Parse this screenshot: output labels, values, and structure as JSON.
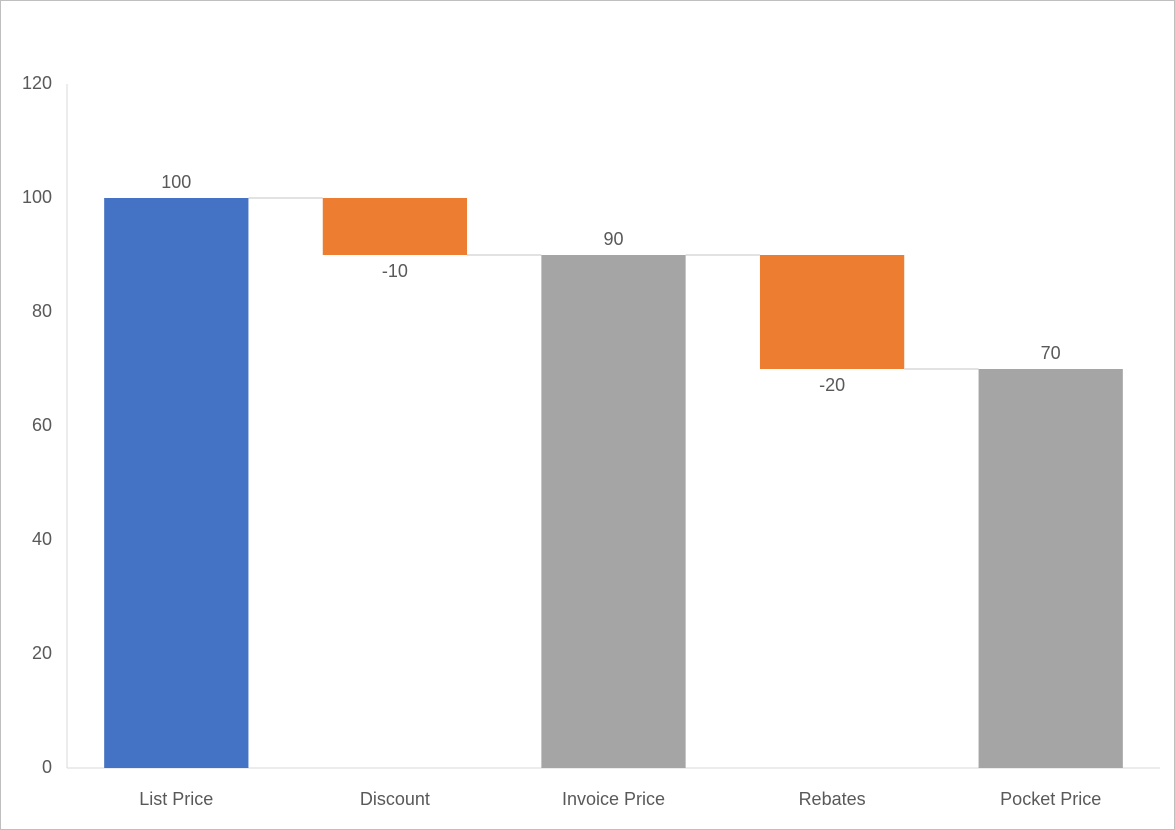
{
  "chart_data": {
    "type": "waterfall",
    "categories": [
      "List Price",
      "Discount",
      "Invoice Price",
      "Rebates",
      "Pocket Price"
    ],
    "values": [
      100,
      -10,
      90,
      -20,
      70
    ],
    "totals": [
      true,
      false,
      true,
      false,
      true
    ],
    "colors": [
      "#4472c4",
      "#ed7d31",
      "#a5a5a5",
      "#ed7d31",
      "#a5a5a5"
    ],
    "ylim": [
      0,
      120
    ],
    "yticks": [
      0,
      20,
      40,
      60,
      80,
      100,
      120
    ],
    "grid": false
  }
}
